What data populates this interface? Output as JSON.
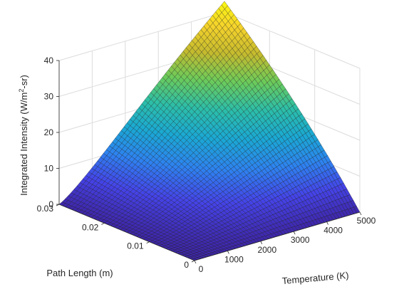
{
  "chart_data": {
    "type": "surface",
    "title": "",
    "xlabel": "Temperature (K)",
    "ylabel": "Path Length (m)",
    "zlabel_main": "Integrated Intensity (W/m",
    "zlabel_sup1": "2",
    "zlabel_mid": "-sr)",
    "xlim": [
      0,
      5000
    ],
    "ylim": [
      0,
      0.03
    ],
    "zlim": [
      0,
      40
    ],
    "x_ticks": [
      "0",
      "1000",
      "2000",
      "3000",
      "4000",
      "5000"
    ],
    "y_ticks": [
      "0",
      "0.01",
      "0.02",
      "0.03"
    ],
    "z_ticks": [
      "0",
      "10",
      "20",
      "30",
      "40"
    ],
    "x_tick_values": [
      0,
      1000,
      2000,
      3000,
      4000,
      5000
    ],
    "y_tick_values": [
      0,
      0.01,
      0.02,
      0.03
    ],
    "z_tick_values": [
      0,
      10,
      20,
      30,
      40
    ],
    "grid": true,
    "colormap": "parula",
    "colormap_stops": [
      "#3e26a8",
      "#4543e8",
      "#2e82f0",
      "#1aa8d4",
      "#2cbea8",
      "#6ccb5a",
      "#c4ba2e",
      "#f6d32b",
      "#f9fb0e"
    ],
    "corner_values": {
      "t_max_L_max": 43.5,
      "t_max_L_0": 0,
      "t_0_L_max": 0,
      "t_0_L_0": 0
    },
    "path_length_samples": [
      0,
      0.005,
      0.01,
      0.015,
      0.02,
      0.025,
      0.03
    ],
    "intensity_at_5000K": [
      0,
      7.5,
      15.0,
      22.0,
      28.5,
      35.5,
      43.5
    ],
    "intensity_at_2500K_max_path": 22.0
  }
}
